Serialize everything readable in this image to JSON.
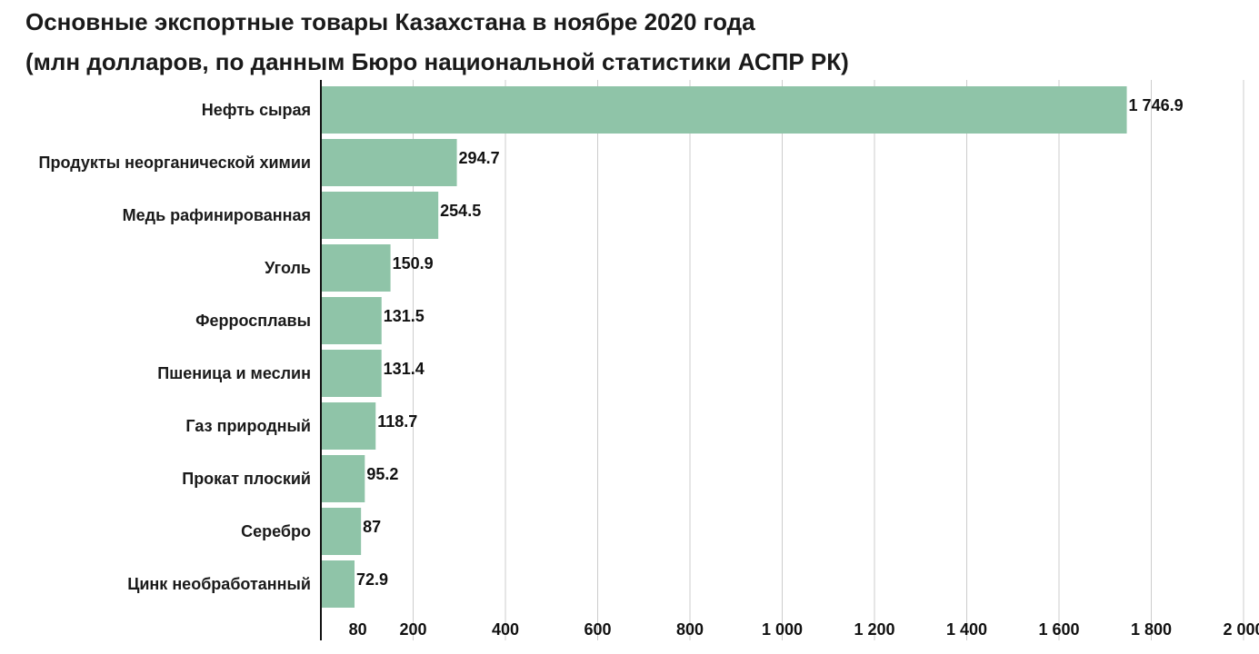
{
  "chart_data": {
    "type": "bar",
    "orientation": "horizontal",
    "title": "Основные экспортные товары Казахстана в ноябре 2020 года",
    "subtitle": "(млн долларов, по данным Бюро национальной статистики АСПР РК)",
    "categories": [
      "Нефть сырая",
      "Продукты неорганической химии",
      "Медь рафинированная",
      "Уголь",
      "Ферросплавы",
      "Пшеница и меслин",
      "Газ природный",
      "Прокат плоский",
      "Серебро",
      "Цинк необработанный"
    ],
    "values": [
      1746.9,
      294.7,
      254.5,
      150.9,
      131.5,
      131.4,
      118.7,
      95.2,
      87,
      72.9
    ],
    "value_labels": [
      "1 746.9",
      "294.7",
      "254.5",
      "150.9",
      "131.5",
      "131.4",
      "118.7",
      "95.2",
      "87",
      "72.9"
    ],
    "xlim": [
      0,
      2000
    ],
    "xticks": [
      80,
      200,
      400,
      600,
      800,
      1000,
      1200,
      1400,
      1600,
      1800,
      2000
    ],
    "xtick_labels": [
      "80",
      "200",
      "400",
      "600",
      "800",
      "1 000",
      "1 200",
      "1 400",
      "1 600",
      "1 800",
      "2 000"
    ],
    "gridlines": [
      200,
      400,
      600,
      800,
      1000,
      1200,
      1400,
      1600,
      1800,
      2000
    ],
    "grid": true,
    "xlabel": "",
    "ylabel": "",
    "bar_color": "#8fc4a8",
    "grid_color": "#cccccc",
    "axis_color": "#111111"
  }
}
